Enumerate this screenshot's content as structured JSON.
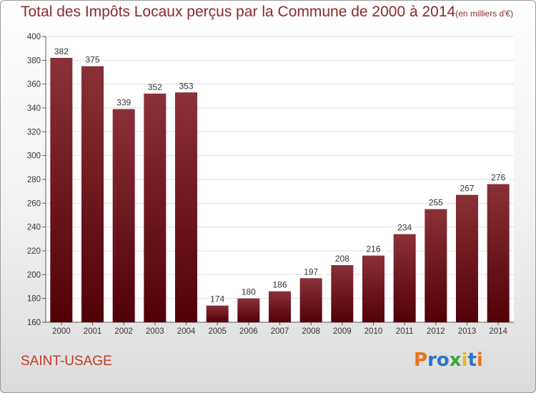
{
  "title": "Total des Impôts Locaux perçus par la Commune de 2000 à 2014",
  "unit_label": "(en milliers d'€)",
  "commune": "SAINT-USAGE",
  "logo": {
    "letters": [
      "P",
      "r",
      "o",
      "x",
      "i",
      "t",
      "i"
    ],
    "colors": [
      "#e8731a",
      "#2a74c9",
      "#2a74c9",
      "#3aa53a",
      "#e6b820",
      "#2a74c9",
      "#e8731a"
    ]
  },
  "colors": {
    "bar_light": "#8a3038",
    "bar_dark": "#520008",
    "text": "#333333",
    "title": "#8a2a2a"
  },
  "chart_data": {
    "type": "bar",
    "categories": [
      "2000",
      "2001",
      "2002",
      "2003",
      "2004",
      "2005",
      "2006",
      "2007",
      "2008",
      "2009",
      "2010",
      "2011",
      "2012",
      "2013",
      "2014"
    ],
    "values": [
      382,
      375,
      339,
      352,
      353,
      174,
      180,
      186,
      197,
      208,
      216,
      234,
      255,
      267,
      276
    ],
    "ylim": [
      160,
      400
    ],
    "yticks": [
      160,
      180,
      200,
      220,
      240,
      260,
      280,
      300,
      320,
      340,
      360,
      380,
      400
    ],
    "grid": true,
    "xlabel": "",
    "ylabel": ""
  }
}
